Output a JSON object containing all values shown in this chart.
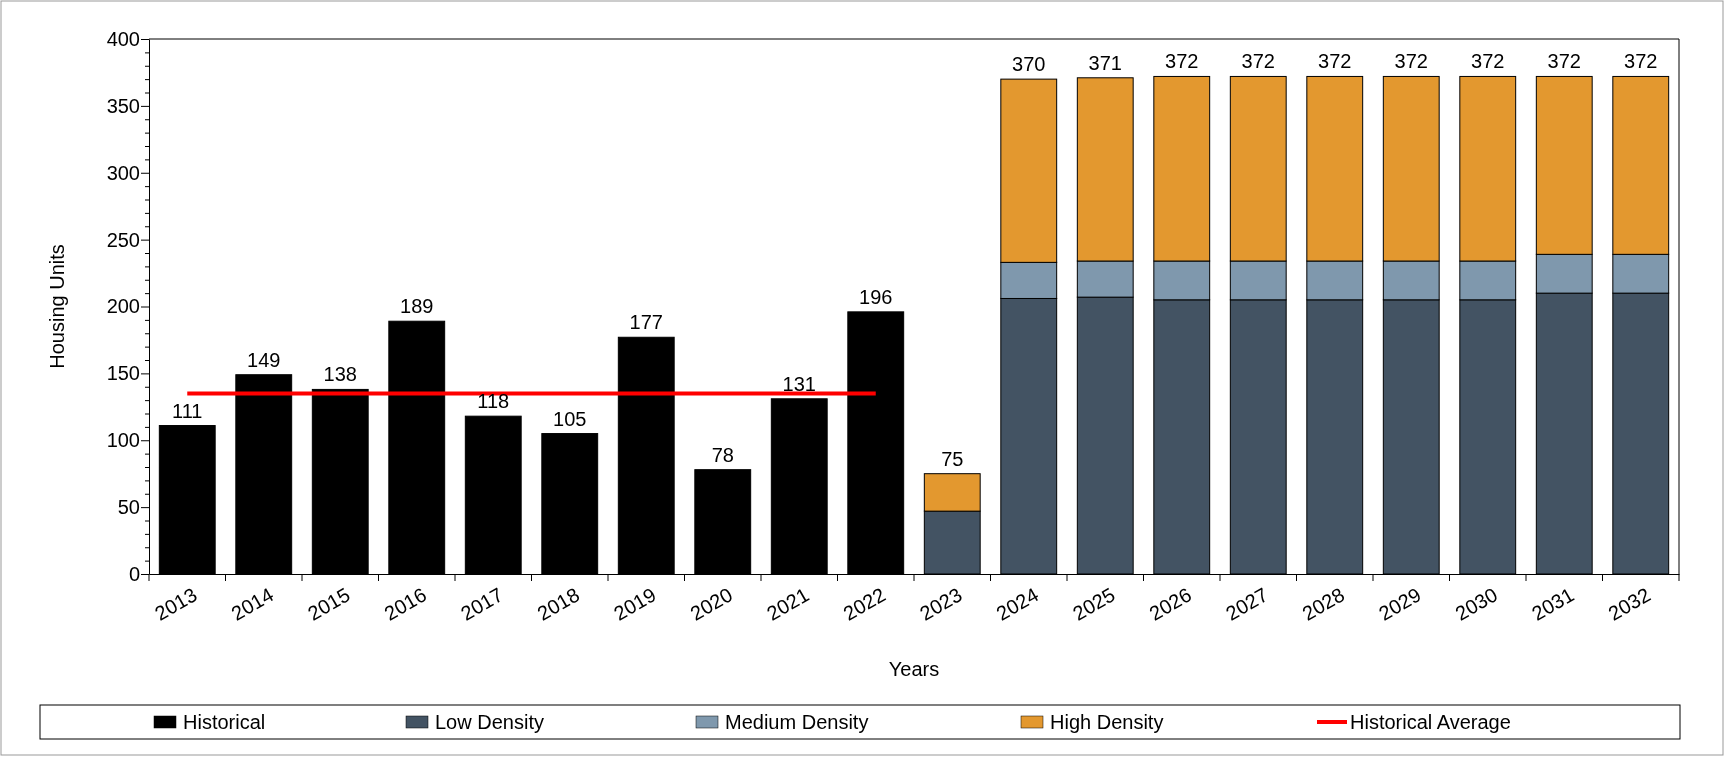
{
  "chart_data": {
    "type": "bar",
    "xlabel": "Years",
    "ylabel": "Housing Units",
    "categories": [
      "2013",
      "2014",
      "2015",
      "2016",
      "2017",
      "2018",
      "2019",
      "2020",
      "2021",
      "2022",
      "2023",
      "2024",
      "2025",
      "2026",
      "2027",
      "2028",
      "2029",
      "2030",
      "2031",
      "2032"
    ],
    "stacked": true,
    "series": [
      {
        "name": "Historical",
        "color": "#000000",
        "values": [
          111,
          149,
          138,
          189,
          118,
          105,
          177,
          78,
          131,
          196,
          null,
          null,
          null,
          null,
          null,
          null,
          null,
          null,
          null,
          null
        ]
      },
      {
        "name": "Low Density",
        "color": "#435363",
        "values": [
          null,
          null,
          null,
          null,
          null,
          null,
          null,
          null,
          null,
          null,
          47,
          206,
          207,
          205,
          205,
          205,
          205,
          205,
          210,
          210
        ]
      },
      {
        "name": "Medium Density",
        "color": "#7f98ad",
        "values": [
          null,
          null,
          null,
          null,
          null,
          null,
          null,
          null,
          null,
          null,
          0,
          27,
          27,
          29,
          29,
          29,
          29,
          29,
          29,
          29
        ]
      },
      {
        "name": "High Density",
        "color": "#e3982f",
        "values": [
          null,
          null,
          null,
          null,
          null,
          null,
          null,
          null,
          null,
          null,
          28,
          137,
          137,
          138,
          138,
          138,
          138,
          138,
          133,
          133
        ]
      },
      {
        "name": "Historical Average",
        "type": "line",
        "color": "#ff0000",
        "values": [
          135,
          135,
          135,
          135,
          135,
          135,
          135,
          135,
          135,
          135,
          null,
          null,
          null,
          null,
          null,
          null,
          null,
          null,
          null,
          null
        ]
      }
    ],
    "totals": [
      "111",
      "149",
      "138",
      "189",
      "118",
      "105",
      "177",
      "78",
      "131",
      "196",
      "75",
      "370",
      "371",
      "372",
      "372",
      "372",
      "372",
      "372",
      "372",
      "372"
    ],
    "ylim": [
      0,
      400
    ],
    "yticks": [
      0,
      {
        "value": 10,
        "label": null
      },
      {
        "value": 20,
        "label": null
      },
      {
        "value": 30,
        "label": null
      },
      {
        "value": 40,
        "label": null
      },
      50,
      {
        "value": 60,
        "label": null
      },
      {
        "value": 70,
        "label": null
      },
      {
        "value": 80,
        "label": null
      },
      {
        "value": 90,
        "label": null
      },
      100,
      {
        "value": 110,
        "label": null
      },
      {
        "value": 120,
        "label": null
      },
      {
        "value": 130,
        "label": null
      },
      {
        "value": 140,
        "label": null
      },
      150,
      {
        "value": 160,
        "label": null
      },
      {
        "value": 170,
        "label": null
      },
      {
        "value": 180,
        "label": null
      },
      {
        "value": 190,
        "label": null
      },
      200,
      {
        "value": 210,
        "label": null
      },
      {
        "value": 220,
        "label": null
      },
      {
        "value": 230,
        "label": null
      },
      {
        "value": 240,
        "label": null
      },
      250,
      {
        "value": 260,
        "label": null
      },
      {
        "value": 270,
        "label": null
      },
      {
        "value": 280,
        "label": null
      },
      {
        "value": 290,
        "label": null
      },
      300,
      {
        "value": 310,
        "label": null
      },
      {
        "value": 320,
        "label": null
      },
      {
        "value": 330,
        "label": null
      },
      {
        "value": 340,
        "label": null
      },
      350,
      {
        "value": 360,
        "label": null
      },
      {
        "value": 370,
        "label": null
      },
      {
        "value": 380,
        "label": null
      },
      {
        "value": 390,
        "label": null
      },
      400
    ],
    "grid": false,
    "legend": "bottom"
  }
}
